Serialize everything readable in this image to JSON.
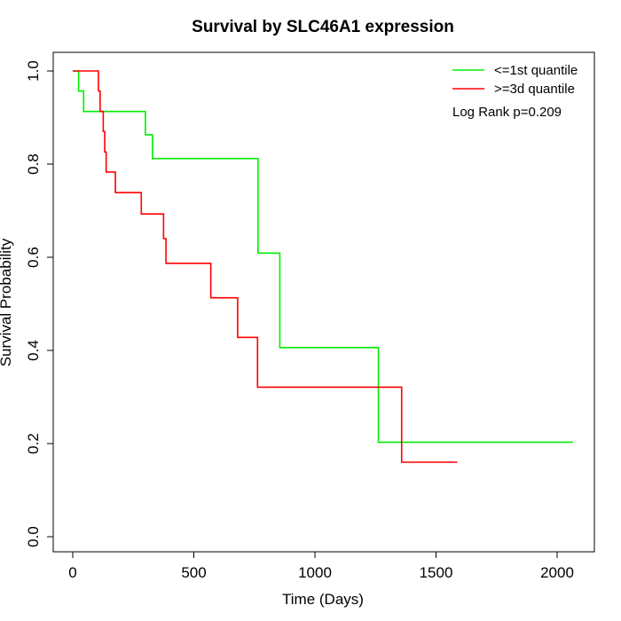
{
  "chart_data": {
    "type": "line",
    "title": "Survival by SLC46A1 expression",
    "xlabel": "Time (Days)",
    "ylabel": "Survival Probability",
    "xlim": [
      0,
      2100
    ],
    "ylim": [
      0,
      1
    ],
    "x_ticks": [
      0,
      500,
      1000,
      1500,
      2000
    ],
    "y_ticks": [
      0.0,
      0.2,
      0.4,
      0.6,
      0.8,
      1.0
    ],
    "x_tick_labels": [
      "0",
      "500",
      "1000",
      "1500",
      "2000"
    ],
    "y_tick_labels": [
      "0.0",
      "0.2",
      "0.4",
      "0.6",
      "0.8",
      "1.0"
    ],
    "step": "post",
    "grid": false,
    "legend_position": "top-right",
    "annotation": "Log Rank p=0.209",
    "series": [
      {
        "name": "<=1st quantile",
        "color": "#00ee00",
        "x": [
          0,
          24,
          45,
          300,
          329,
          765,
          855,
          1262,
          2065
        ],
        "y": [
          1.0,
          0.957,
          0.913,
          0.863,
          0.812,
          0.609,
          0.406,
          0.203,
          0.203
        ]
      },
      {
        "name": ">=3d quantile",
        "color": "#ff0000",
        "x": [
          0,
          106,
          113,
          126,
          132,
          138,
          176,
          283,
          375,
          385,
          570,
          681,
          763,
          1358,
          1588
        ],
        "y": [
          1.0,
          0.957,
          0.913,
          0.87,
          0.826,
          0.783,
          0.739,
          0.693,
          0.64,
          0.587,
          0.513,
          0.428,
          0.321,
          0.16,
          0.16
        ]
      }
    ]
  }
}
